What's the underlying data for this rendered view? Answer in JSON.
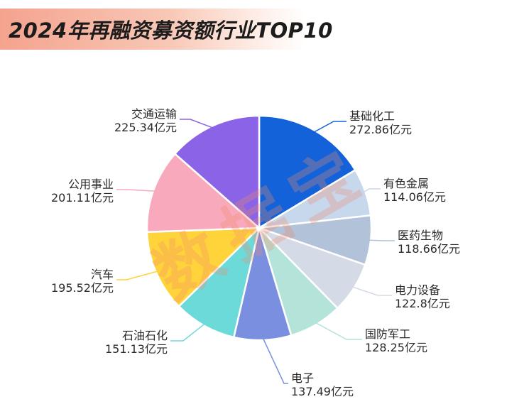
{
  "title": "2024年再融资募资额行业TOP10",
  "watermark": "数据宝",
  "chart_data": {
    "type": "pie",
    "unit": "亿元",
    "legend": "none",
    "categories": [
      "基础化工",
      "有色金属",
      "医药生物",
      "电力设备",
      "国防军工",
      "电子",
      "石油石化",
      "汽车",
      "公用事业",
      "交通运输"
    ],
    "values": [
      272.86,
      114.06,
      118.66,
      122.8,
      128.25,
      137.49,
      151.13,
      195.52,
      201.11,
      225.34
    ],
    "value_labels": [
      "272.86亿元",
      "114.06亿元",
      "118.66亿元",
      "122.8亿元",
      "128.25亿元",
      "137.49亿元",
      "151.13亿元",
      "195.52亿元",
      "201.11亿元",
      "225.34亿元"
    ],
    "colors": [
      "#1462d9",
      "#c7d7ec",
      "#b2c2d8",
      "#d4dae6",
      "#b4e4d9",
      "#7b8fe0",
      "#6cdad9",
      "#ffd43a",
      "#f9a9bc",
      "#8a63e6"
    ]
  }
}
